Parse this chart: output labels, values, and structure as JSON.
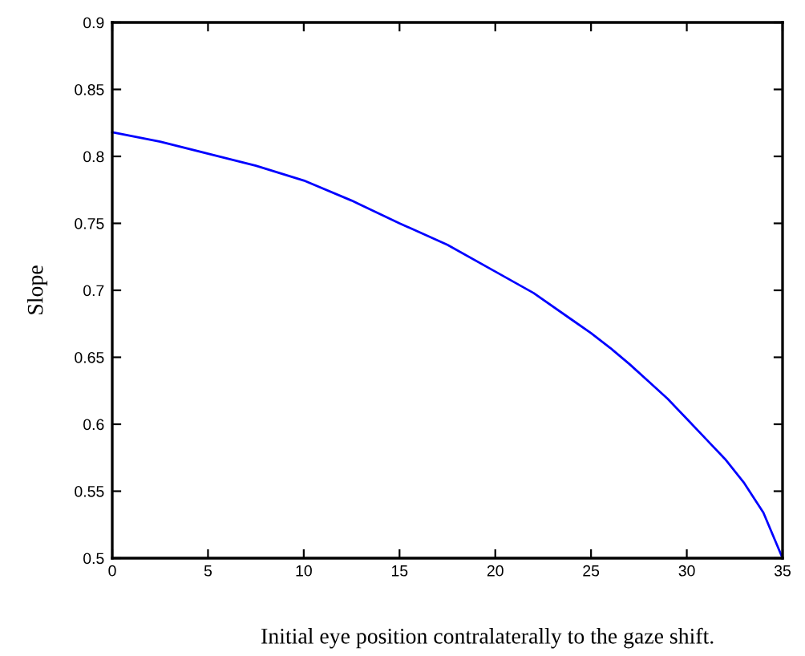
{
  "chart_data": {
    "type": "line",
    "xlabel": "Initial eye position contralaterally to the gaze shift.",
    "ylabel": "Slope",
    "x": [
      0,
      2.5,
      5,
      7.5,
      10,
      12.5,
      15,
      17.5,
      20,
      22,
      24,
      25,
      26,
      27,
      28,
      29,
      30,
      31,
      32,
      33,
      34,
      35
    ],
    "series": [
      {
        "color": "#0000ff",
        "values": [
          0.818,
          0.811,
          0.802,
          0.793,
          0.782,
          0.767,
          0.75,
          0.734,
          0.714,
          0.698,
          0.678,
          0.668,
          0.657,
          0.645,
          0.632,
          0.619,
          0.604,
          0.589,
          0.574,
          0.556,
          0.534,
          0.5
        ]
      }
    ],
    "xlim": [
      0,
      35
    ],
    "ylim": [
      0.5,
      0.9
    ],
    "xticks": [
      0,
      5,
      10,
      15,
      20,
      25,
      30,
      35
    ],
    "yticks": [
      0.5,
      0.55,
      0.6,
      0.65,
      0.7,
      0.75,
      0.8,
      0.85,
      0.9
    ],
    "grid": false,
    "legend": false,
    "marker": "none",
    "line_style": "solid"
  }
}
